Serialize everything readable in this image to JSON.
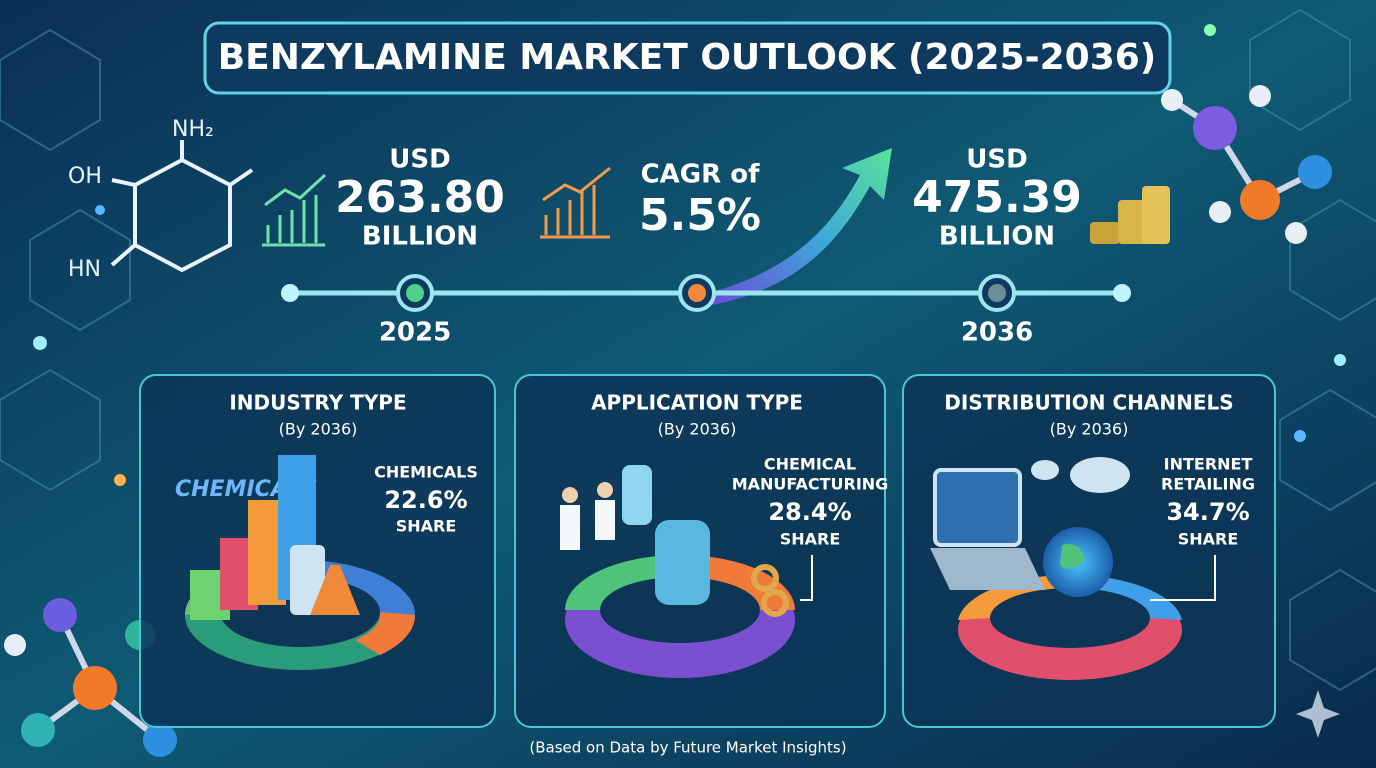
{
  "header": {
    "title": "BENZYLAMINE MARKET OUTLOOK (2025-2036)"
  },
  "molecule_labels": [
    "NH₂",
    "OH",
    "HN"
  ],
  "stats": [
    {
      "prefix": "USD",
      "value": "263.80",
      "unit": "BILLION"
    },
    {
      "prefix": "CAGR of",
      "value": "5.5%"
    },
    {
      "prefix": "USD",
      "value": "475.39",
      "unit": "BILLION"
    }
  ],
  "timeline": {
    "start": "2025",
    "end": "2036"
  },
  "panels": [
    {
      "title": "INDUSTRY TYPE",
      "subtitle": "(By 2036)",
      "segment": [
        "CHEMICALS"
      ],
      "share": "22.6%",
      "share_label": "SHARE",
      "illustration_text": "CHEMICALS"
    },
    {
      "title": "APPLICATION TYPE",
      "subtitle": "(By 2036)",
      "segment": [
        "CHEMICAL",
        "MANUFACTURING"
      ],
      "share": "28.4%",
      "share_label": "SHARE"
    },
    {
      "title": "DISTRIBUTION CHANNELS",
      "subtitle": "(By 2036)",
      "segment": [
        "INTERNET",
        "RETAILING"
      ],
      "share": "34.7%",
      "share_label": "SHARE"
    }
  ],
  "footer": "(Based on Data by Future Market Insights)"
}
